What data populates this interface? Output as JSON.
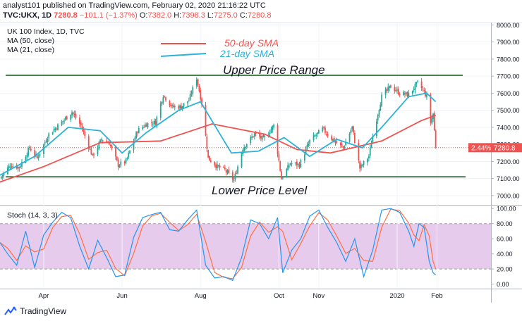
{
  "header": {
    "line1": "analyst101 published on TradingView.com, February 02, 2020 21:16:22 UTC",
    "symbol": "TVC:UKX, 1D",
    "last": "7280.8",
    "change": "−101.1 (−1.37%)",
    "o_label": "O:",
    "o_val": "7382.0",
    "h_label": "H:",
    "h_val": "7398.3",
    "l_label": "L:",
    "l_val": "7275.0",
    "c_label": "C:",
    "c_val": "7280.8"
  },
  "price_pane": {
    "legend_title": "UK 100 Index, 1D, TVC",
    "legend_ma50": "MA (50, close)",
    "legend_ma21": "MA (21, close)",
    "annot_sma50": "50-day SMA",
    "annot_sma21": "21-day SMA",
    "annot_upper": "Upper Price Range",
    "annot_lower": "Lower Price Level",
    "price_badge_pct": "2.44%",
    "price_badge_val": "7280.8"
  },
  "stoch_pane": {
    "label": "Stoch (14, 3, 3)"
  },
  "footer": {
    "brand": "TradingView"
  },
  "colors": {
    "up": "#26a69a",
    "down": "#ef5350",
    "sma50": "#ef5350",
    "sma21": "#2bb3d8",
    "levels": "#1b5e20",
    "stoch_k": "#2196f3",
    "stoch_d": "#ff7043",
    "stoch_band": "#e1bee7"
  },
  "chart_data": [
    {
      "type": "candlestick",
      "title": "UK 100 Index, 1D, TVC",
      "y_ticks": [
        7000,
        7100,
        7200,
        7300,
        7400,
        7500,
        7600,
        7700,
        7800,
        7900,
        8000
      ],
      "ylim": [
        6950,
        8010
      ],
      "x_ticks": [
        "Apr",
        "Jun",
        "Aug",
        "Oct",
        "Nov",
        "2020",
        "Feb"
      ],
      "x_tick_dates": [
        "2019-04-01",
        "2019-06-01",
        "2019-08-01",
        "2019-10-01",
        "2019-11-01",
        "2020-01-01",
        "2020-02-01"
      ],
      "date_range": [
        "2019-02-26",
        "2020-03-14"
      ],
      "close_anchors": [
        [
          "2019-02-27",
          7110
        ],
        [
          "2019-03-06",
          7180
        ],
        [
          "2019-03-13",
          7165
        ],
        [
          "2019-03-21",
          7280
        ],
        [
          "2019-03-27",
          7220
        ],
        [
          "2019-04-05",
          7360
        ],
        [
          "2019-04-15",
          7430
        ],
        [
          "2019-04-23",
          7490
        ],
        [
          "2019-04-30",
          7410
        ],
        [
          "2019-05-09",
          7230
        ],
        [
          "2019-05-16",
          7330
        ],
        [
          "2019-05-22",
          7310
        ],
        [
          "2019-05-29",
          7180
        ],
        [
          "2019-06-04",
          7200
        ],
        [
          "2019-06-13",
          7380
        ],
        [
          "2019-06-20",
          7420
        ],
        [
          "2019-06-27",
          7430
        ],
        [
          "2019-07-03",
          7590
        ],
        [
          "2019-07-10",
          7520
        ],
        [
          "2019-07-17",
          7520
        ],
        [
          "2019-07-23",
          7560
        ],
        [
          "2019-07-29",
          7690
        ],
        [
          "2019-08-02",
          7540
        ],
        [
          "2019-08-07",
          7220
        ],
        [
          "2019-08-14",
          7170
        ],
        [
          "2019-08-20",
          7150
        ],
        [
          "2019-08-27",
          7090
        ],
        [
          "2019-09-03",
          7280
        ],
        [
          "2019-09-12",
          7360
        ],
        [
          "2019-09-19",
          7330
        ],
        [
          "2019-09-27",
          7410
        ],
        [
          "2019-10-03",
          7100
        ],
        [
          "2019-10-10",
          7190
        ],
        [
          "2019-10-17",
          7180
        ],
        [
          "2019-10-25",
          7320
        ],
        [
          "2019-11-04",
          7390
        ],
        [
          "2019-11-13",
          7320
        ],
        [
          "2019-11-20",
          7280
        ],
        [
          "2019-11-27",
          7400
        ],
        [
          "2019-12-03",
          7160
        ],
        [
          "2019-12-10",
          7230
        ],
        [
          "2019-12-13",
          7350
        ],
        [
          "2019-12-20",
          7580
        ],
        [
          "2019-12-27",
          7640
        ],
        [
          "2020-01-03",
          7600
        ],
        [
          "2020-01-10",
          7590
        ],
        [
          "2020-01-17",
          7660
        ],
        [
          "2020-01-21",
          7620
        ],
        [
          "2020-01-24",
          7580
        ],
        [
          "2020-01-27",
          7430
        ],
        [
          "2020-01-29",
          7480
        ],
        [
          "2020-01-31",
          7280
        ]
      ],
      "series": [
        {
          "name": "MA (50, close)",
          "points": [
            [
              "2019-02-26",
              7080
            ],
            [
              "2019-04-01",
              7170
            ],
            [
              "2019-05-15",
              7310
            ],
            [
              "2019-07-01",
              7320
            ],
            [
              "2019-08-10",
              7420
            ],
            [
              "2019-09-20",
              7360
            ],
            [
              "2019-10-15",
              7270
            ],
            [
              "2019-11-10",
              7250
            ],
            [
              "2019-12-20",
              7320
            ],
            [
              "2020-01-20",
              7440
            ],
            [
              "2020-01-31",
              7470
            ]
          ]
        },
        {
          "name": "MA (21, close)",
          "points": [
            [
              "2019-02-26",
              7120
            ],
            [
              "2019-03-25",
              7230
            ],
            [
              "2019-04-20",
              7400
            ],
            [
              "2019-05-15",
              7380
            ],
            [
              "2019-06-01",
              7250
            ],
            [
              "2019-06-20",
              7370
            ],
            [
              "2019-07-15",
              7500
            ],
            [
              "2019-08-01",
              7550
            ],
            [
              "2019-08-25",
              7250
            ],
            [
              "2019-09-15",
              7260
            ],
            [
              "2019-10-05",
              7340
            ],
            [
              "2019-10-25",
              7230
            ],
            [
              "2019-11-15",
              7330
            ],
            [
              "2019-12-05",
              7280
            ],
            [
              "2019-12-20",
              7400
            ],
            [
              "2020-01-10",
              7580
            ],
            [
              "2020-01-24",
              7600
            ],
            [
              "2020-01-31",
              7550
            ]
          ]
        }
      ],
      "levels": [
        {
          "label": "Upper Price Range",
          "value": 7705
        },
        {
          "label": "Lower Price Level",
          "value": 7110
        }
      ],
      "last_price": 7280.8,
      "last_price_change_pct": 2.44
    },
    {
      "type": "line",
      "title": "Stoch (14, 3, 3)",
      "y_ticks": [
        0,
        20,
        40,
        60,
        80,
        100
      ],
      "ylim": [
        -5,
        103
      ],
      "bands": [
        20,
        80
      ],
      "k_anchors": [
        [
          "2019-02-26",
          55
        ],
        [
          "2019-03-04",
          40
        ],
        [
          "2019-03-11",
          25
        ],
        [
          "2019-03-18",
          70
        ],
        [
          "2019-03-25",
          22
        ],
        [
          "2019-04-01",
          65
        ],
        [
          "2019-04-08",
          82
        ],
        [
          "2019-04-15",
          95
        ],
        [
          "2019-04-22",
          88
        ],
        [
          "2019-04-29",
          50
        ],
        [
          "2019-05-06",
          20
        ],
        [
          "2019-05-13",
          58
        ],
        [
          "2019-05-20",
          35
        ],
        [
          "2019-05-27",
          10
        ],
        [
          "2019-06-03",
          12
        ],
        [
          "2019-06-10",
          62
        ],
        [
          "2019-06-17",
          88
        ],
        [
          "2019-06-24",
          92
        ],
        [
          "2019-07-01",
          95
        ],
        [
          "2019-07-08",
          72
        ],
        [
          "2019-07-15",
          70
        ],
        [
          "2019-07-22",
          85
        ],
        [
          "2019-07-29",
          98
        ],
        [
          "2019-08-05",
          25
        ],
        [
          "2019-08-12",
          8
        ],
        [
          "2019-08-19",
          10
        ],
        [
          "2019-08-26",
          5
        ],
        [
          "2019-09-02",
          35
        ],
        [
          "2019-09-09",
          85
        ],
        [
          "2019-09-16",
          80
        ],
        [
          "2019-09-23",
          60
        ],
        [
          "2019-09-30",
          88
        ],
        [
          "2019-10-04",
          15
        ],
        [
          "2019-10-11",
          45
        ],
        [
          "2019-10-18",
          60
        ],
        [
          "2019-10-25",
          90
        ],
        [
          "2019-11-01",
          98
        ],
        [
          "2019-11-08",
          75
        ],
        [
          "2019-11-15",
          55
        ],
        [
          "2019-11-22",
          30
        ],
        [
          "2019-11-29",
          60
        ],
        [
          "2019-12-06",
          10
        ],
        [
          "2019-12-13",
          45
        ],
        [
          "2019-12-20",
          98
        ],
        [
          "2019-12-27",
          100
        ],
        [
          "2020-01-03",
          95
        ],
        [
          "2020-01-10",
          70
        ],
        [
          "2020-01-14",
          50
        ],
        [
          "2020-01-18",
          80
        ],
        [
          "2020-01-22",
          75
        ],
        [
          "2020-01-26",
          30
        ],
        [
          "2020-01-29",
          15
        ],
        [
          "2020-01-31",
          12
        ]
      ],
      "d_lag_days": 3
    }
  ]
}
